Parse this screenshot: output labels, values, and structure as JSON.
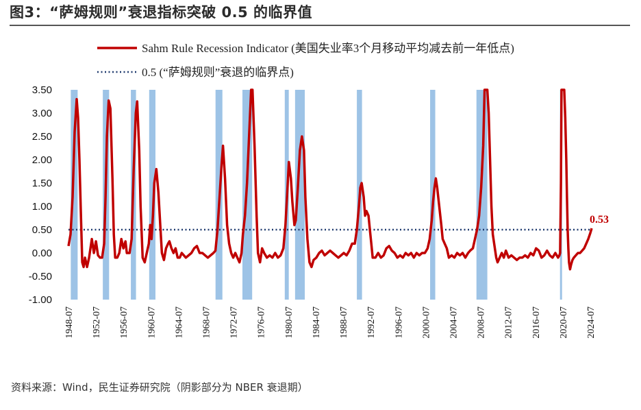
{
  "figure": {
    "title": "图3：“萨姆规则”衰退指标突破 0.5 的临界值",
    "source": "资料来源：Wind，民生证券研究院（阴影部分为 NBER 衰退期）"
  },
  "colors": {
    "line": "#c00000",
    "threshold": "#1f3a6e",
    "recession": "#9dc3e6"
  },
  "chart_data": {
    "type": "line",
    "title": "",
    "xlabel": "",
    "ylabel": "",
    "ylim": [
      -1.0,
      3.5
    ],
    "xlim": [
      1948.5,
      2024.9
    ],
    "y_ticks": [
      "3.50",
      "3.00",
      "2.50",
      "2.00",
      "1.50",
      "1.00",
      "0.50",
      "0.00",
      "-0.50",
      "-1.00"
    ],
    "x_ticks": [
      "1948-07",
      "1952-07",
      "1956-07",
      "1960-07",
      "1964-07",
      "1968-07",
      "1972-07",
      "1976-07",
      "1980-07",
      "1984-07",
      "1988-07",
      "1992-07",
      "1996-07",
      "2000-07",
      "2004-07",
      "2008-07",
      "2012-07",
      "2016-07",
      "2020-07",
      "2024-07"
    ],
    "legend": [
      {
        "label": "Sahm Rule Recession Indicator (美国失业率3个月移动平均减去前一年低点)",
        "style": "solid",
        "color": "#c00000"
      },
      {
        "label": "0.5 (“萨姆规则”衰退的临界点)",
        "style": "dotted",
        "color": "#1f3a6e"
      }
    ],
    "threshold": 0.5,
    "last_value_label": "0.53",
    "recessions": [
      [
        "1948-11",
        "1949-10"
      ],
      [
        "1953-07",
        "1954-05"
      ],
      [
        "1957-08",
        "1958-04"
      ],
      [
        "1960-04",
        "1961-02"
      ],
      [
        "1969-12",
        "1970-11"
      ],
      [
        "1973-11",
        "1975-03"
      ],
      [
        "1980-01",
        "1980-07"
      ],
      [
        "1981-07",
        "1982-11"
      ],
      [
        "1990-07",
        "1991-03"
      ],
      [
        "2001-03",
        "2001-11"
      ],
      [
        "2007-12",
        "2009-06"
      ],
      [
        "2020-02",
        "2020-04"
      ]
    ],
    "series": [
      {
        "name": "Sahm Rule Recession Indicator (美国失业率3个月移动平均减去前一年低点)",
        "points": [
          [
            1948.5,
            0.15
          ],
          [
            1948.8,
            0.4
          ],
          [
            1949.1,
            1.2
          ],
          [
            1949.4,
            2.6
          ],
          [
            1949.7,
            3.3
          ],
          [
            1949.9,
            2.9
          ],
          [
            1950.1,
            2.0
          ],
          [
            1950.3,
            0.9
          ],
          [
            1950.5,
            -0.2
          ],
          [
            1950.7,
            -0.3
          ],
          [
            1950.9,
            -0.1
          ],
          [
            1951.2,
            -0.3
          ],
          [
            1951.5,
            -0.1
          ],
          [
            1951.9,
            0.3
          ],
          [
            1952.2,
            0.0
          ],
          [
            1952.5,
            0.25
          ],
          [
            1952.8,
            -0.05
          ],
          [
            1953.1,
            -0.1
          ],
          [
            1953.4,
            -0.1
          ],
          [
            1953.7,
            0.2
          ],
          [
            1953.9,
            1.2
          ],
          [
            1954.1,
            2.5
          ],
          [
            1954.35,
            3.27
          ],
          [
            1954.6,
            3.1
          ],
          [
            1954.9,
            1.6
          ],
          [
            1955.1,
            0.4
          ],
          [
            1955.3,
            -0.1
          ],
          [
            1955.6,
            -0.1
          ],
          [
            1955.9,
            0.0
          ],
          [
            1956.2,
            0.3
          ],
          [
            1956.5,
            0.1
          ],
          [
            1956.8,
            0.25
          ],
          [
            1957.0,
            0.0
          ],
          [
            1957.4,
            0.0
          ],
          [
            1957.7,
            0.3
          ],
          [
            1958.0,
            1.8
          ],
          [
            1958.3,
            3.0
          ],
          [
            1958.5,
            3.25
          ],
          [
            1958.8,
            2.2
          ],
          [
            1959.0,
            1.0
          ],
          [
            1959.3,
            -0.1
          ],
          [
            1959.6,
            -0.2
          ],
          [
            1959.9,
            0.0
          ],
          [
            1960.2,
            0.2
          ],
          [
            1960.4,
            0.6
          ],
          [
            1960.6,
            0.3
          ],
          [
            1960.8,
            0.8
          ],
          [
            1961.0,
            1.5
          ],
          [
            1961.3,
            1.8
          ],
          [
            1961.6,
            1.3
          ],
          [
            1961.9,
            0.5
          ],
          [
            1962.1,
            0.0
          ],
          [
            1962.4,
            -0.15
          ],
          [
            1962.7,
            0.1
          ],
          [
            1963.0,
            0.2
          ],
          [
            1963.2,
            0.25
          ],
          [
            1963.5,
            0.1
          ],
          [
            1963.8,
            0.0
          ],
          [
            1964.1,
            0.1
          ],
          [
            1964.4,
            -0.1
          ],
          [
            1964.7,
            -0.1
          ],
          [
            1965.0,
            0.0
          ],
          [
            1965.3,
            -0.05
          ],
          [
            1965.6,
            -0.1
          ],
          [
            1966.0,
            -0.05
          ],
          [
            1966.4,
            0.0
          ],
          [
            1966.8,
            0.1
          ],
          [
            1967.2,
            0.15
          ],
          [
            1967.6,
            0.0
          ],
          [
            1968.0,
            0.0
          ],
          [
            1968.4,
            -0.05
          ],
          [
            1968.8,
            -0.1
          ],
          [
            1969.2,
            -0.05
          ],
          [
            1969.6,
            0.0
          ],
          [
            1969.9,
            0.05
          ],
          [
            1970.2,
            0.5
          ],
          [
            1970.5,
            1.2
          ],
          [
            1970.8,
            1.9
          ],
          [
            1971.0,
            2.3
          ],
          [
            1971.3,
            1.6
          ],
          [
            1971.6,
            0.6
          ],
          [
            1971.9,
            0.2
          ],
          [
            1972.2,
            0.0
          ],
          [
            1972.5,
            -0.1
          ],
          [
            1972.8,
            0.0
          ],
          [
            1973.1,
            -0.1
          ],
          [
            1973.4,
            -0.2
          ],
          [
            1973.7,
            0.0
          ],
          [
            1973.9,
            0.4
          ],
          [
            1974.2,
            0.8
          ],
          [
            1974.5,
            1.5
          ],
          [
            1974.8,
            2.5
          ],
          [
            1975.1,
            3.5
          ],
          [
            1975.3,
            3.5
          ],
          [
            1975.6,
            2.3
          ],
          [
            1975.9,
            0.8
          ],
          [
            1976.1,
            0.0
          ],
          [
            1976.4,
            -0.2
          ],
          [
            1976.7,
            0.1
          ],
          [
            1977.0,
            0.0
          ],
          [
            1977.4,
            -0.1
          ],
          [
            1977.8,
            -0.05
          ],
          [
            1978.2,
            -0.1
          ],
          [
            1978.6,
            0.0
          ],
          [
            1979.0,
            -0.1
          ],
          [
            1979.4,
            -0.05
          ],
          [
            1979.8,
            0.1
          ],
          [
            1980.1,
            0.6
          ],
          [
            1980.4,
            1.4
          ],
          [
            1980.6,
            1.95
          ],
          [
            1980.9,
            1.6
          ],
          [
            1981.1,
            1.1
          ],
          [
            1981.4,
            0.6
          ],
          [
            1981.6,
            0.7
          ],
          [
            1981.9,
            1.4
          ],
          [
            1982.2,
            2.2
          ],
          [
            1982.5,
            2.5
          ],
          [
            1982.8,
            2.2
          ],
          [
            1983.0,
            1.2
          ],
          [
            1983.3,
            0.3
          ],
          [
            1983.6,
            -0.2
          ],
          [
            1983.9,
            -0.3
          ],
          [
            1984.2,
            -0.15
          ],
          [
            1984.6,
            -0.1
          ],
          [
            1985.0,
            0.0
          ],
          [
            1985.4,
            0.05
          ],
          [
            1985.8,
            -0.05
          ],
          [
            1986.2,
            0.0
          ],
          [
            1986.6,
            0.05
          ],
          [
            1987.0,
            0.0
          ],
          [
            1987.4,
            -0.05
          ],
          [
            1987.8,
            -0.1
          ],
          [
            1988.2,
            -0.05
          ],
          [
            1988.6,
            0.0
          ],
          [
            1989.0,
            -0.05
          ],
          [
            1989.4,
            0.05
          ],
          [
            1989.8,
            0.2
          ],
          [
            1990.2,
            0.2
          ],
          [
            1990.5,
            0.5
          ],
          [
            1990.8,
            1.0
          ],
          [
            1991.0,
            1.4
          ],
          [
            1991.2,
            1.5
          ],
          [
            1991.5,
            1.2
          ],
          [
            1991.7,
            0.8
          ],
          [
            1991.9,
            0.9
          ],
          [
            1992.2,
            0.8
          ],
          [
            1992.4,
            0.5
          ],
          [
            1992.6,
            0.2
          ],
          [
            1992.8,
            -0.1
          ],
          [
            1993.2,
            -0.1
          ],
          [
            1993.6,
            0.0
          ],
          [
            1994.0,
            -0.1
          ],
          [
            1994.4,
            -0.05
          ],
          [
            1994.8,
            0.1
          ],
          [
            1995.2,
            0.15
          ],
          [
            1995.6,
            0.05
          ],
          [
            1996.0,
            0.0
          ],
          [
            1996.4,
            -0.1
          ],
          [
            1996.8,
            -0.05
          ],
          [
            1997.2,
            -0.1
          ],
          [
            1997.6,
            0.0
          ],
          [
            1998.0,
            -0.05
          ],
          [
            1998.4,
            0.0
          ],
          [
            1998.8,
            -0.1
          ],
          [
            1999.2,
            0.0
          ],
          [
            1999.6,
            -0.05
          ],
          [
            2000.0,
            0.0
          ],
          [
            2000.4,
            0.0
          ],
          [
            2000.8,
            0.1
          ],
          [
            2001.1,
            0.3
          ],
          [
            2001.4,
            0.7
          ],
          [
            2001.6,
            1.1
          ],
          [
            2001.8,
            1.4
          ],
          [
            2002.0,
            1.6
          ],
          [
            2002.2,
            1.4
          ],
          [
            2002.5,
            1.0
          ],
          [
            2002.8,
            0.6
          ],
          [
            2003.0,
            0.3
          ],
          [
            2003.3,
            0.2
          ],
          [
            2003.6,
            0.1
          ],
          [
            2003.9,
            -0.1
          ],
          [
            2004.3,
            -0.05
          ],
          [
            2004.7,
            -0.1
          ],
          [
            2005.1,
            0.0
          ],
          [
            2005.5,
            -0.05
          ],
          [
            2005.9,
            0.0
          ],
          [
            2006.3,
            -0.1
          ],
          [
            2006.7,
            0.0
          ],
          [
            2007.0,
            0.05
          ],
          [
            2007.4,
            0.1
          ],
          [
            2007.7,
            0.3
          ],
          [
            2008.0,
            0.5
          ],
          [
            2008.3,
            0.8
          ],
          [
            2008.6,
            1.4
          ],
          [
            2008.9,
            2.3
          ],
          [
            2009.1,
            3.5
          ],
          [
            2009.3,
            3.5
          ],
          [
            2009.5,
            3.5
          ],
          [
            2009.7,
            3.0
          ],
          [
            2009.9,
            2.0
          ],
          [
            2010.1,
            1.0
          ],
          [
            2010.3,
            0.4
          ],
          [
            2010.6,
            0.1
          ],
          [
            2010.8,
            -0.1
          ],
          [
            2011.0,
            -0.2
          ],
          [
            2011.3,
            -0.1
          ],
          [
            2011.6,
            0.0
          ],
          [
            2011.9,
            -0.1
          ],
          [
            2012.2,
            0.05
          ],
          [
            2012.6,
            -0.1
          ],
          [
            2013.0,
            -0.05
          ],
          [
            2013.4,
            -0.1
          ],
          [
            2013.8,
            -0.15
          ],
          [
            2014.2,
            -0.1
          ],
          [
            2014.6,
            -0.1
          ],
          [
            2015.0,
            -0.05
          ],
          [
            2015.4,
            -0.1
          ],
          [
            2015.8,
            0.0
          ],
          [
            2016.2,
            -0.05
          ],
          [
            2016.6,
            0.1
          ],
          [
            2017.0,
            0.05
          ],
          [
            2017.4,
            -0.1
          ],
          [
            2017.8,
            -0.05
          ],
          [
            2018.2,
            0.05
          ],
          [
            2018.6,
            -0.05
          ],
          [
            2019.0,
            -0.1
          ],
          [
            2019.4,
            0.0
          ],
          [
            2019.8,
            -0.1
          ],
          [
            2020.0,
            -0.05
          ],
          [
            2020.1,
            0.0
          ],
          [
            2020.22,
            1.5
          ],
          [
            2020.3,
            3.5
          ],
          [
            2020.5,
            3.5
          ],
          [
            2020.7,
            3.5
          ],
          [
            2020.85,
            2.9
          ],
          [
            2021.0,
            2.0
          ],
          [
            2021.1,
            1.2
          ],
          [
            2021.2,
            0.5
          ],
          [
            2021.3,
            0.1
          ],
          [
            2021.4,
            -0.2
          ],
          [
            2021.55,
            -0.35
          ],
          [
            2021.7,
            -0.25
          ],
          [
            2021.9,
            -0.15
          ],
          [
            2022.1,
            -0.1
          ],
          [
            2022.4,
            -0.05
          ],
          [
            2022.7,
            0.0
          ],
          [
            2023.0,
            0.0
          ],
          [
            2023.3,
            0.05
          ],
          [
            2023.6,
            0.1
          ],
          [
            2023.9,
            0.2
          ],
          [
            2024.2,
            0.3
          ],
          [
            2024.5,
            0.43
          ],
          [
            2024.7,
            0.53
          ]
        ]
      }
    ]
  }
}
